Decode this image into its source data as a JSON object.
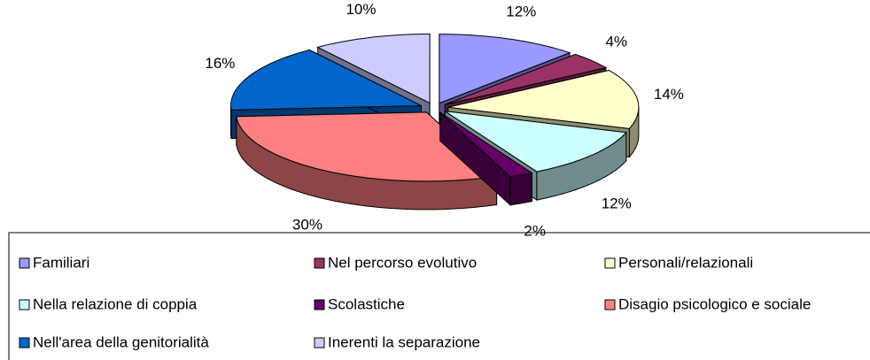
{
  "chart_data": {
    "type": "pie3d",
    "categories": [
      "Familiari",
      "Nel percorso evolutivo",
      "Personali/relazionali",
      "Nella relazione di coppia",
      "Scolastiche",
      "Disagio psicologico e sociale",
      "Nell'area della genitorialità",
      "Inerenti la separazione"
    ],
    "values": [
      12,
      4,
      14,
      12,
      2,
      30,
      16,
      10
    ],
    "value_labels": [
      "12%",
      "4%",
      "14%",
      "12%",
      "2%",
      "30%",
      "16%",
      "10%"
    ],
    "colors": [
      "#9999ff",
      "#993366",
      "#ffffcc",
      "#ccffff",
      "#660066",
      "#ff8080",
      "#0066cc",
      "#ccccff"
    ],
    "legend": "bottom"
  }
}
